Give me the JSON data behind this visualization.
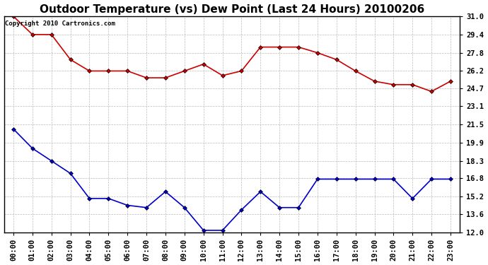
{
  "title": "Outdoor Temperature (vs) Dew Point (Last 24 Hours) 20100206",
  "copyright_text": "Copyright 2010 Cartronics.com",
  "x_labels": [
    "00:00",
    "01:00",
    "02:00",
    "03:00",
    "04:00",
    "05:00",
    "06:00",
    "07:00",
    "08:00",
    "09:00",
    "10:00",
    "11:00",
    "12:00",
    "13:00",
    "14:00",
    "15:00",
    "16:00",
    "17:00",
    "18:00",
    "19:00",
    "20:00",
    "21:00",
    "22:00",
    "23:00"
  ],
  "temp_data": [
    31.0,
    29.4,
    29.4,
    27.2,
    26.2,
    26.2,
    26.2,
    25.6,
    25.6,
    26.2,
    26.8,
    25.8,
    26.2,
    28.3,
    28.3,
    28.3,
    27.8,
    27.2,
    26.2,
    25.3,
    25.0,
    25.0,
    24.4,
    25.3
  ],
  "dew_data": [
    21.1,
    19.4,
    18.3,
    17.2,
    15.0,
    15.0,
    14.4,
    14.2,
    15.6,
    14.2,
    12.2,
    12.2,
    14.0,
    15.6,
    14.2,
    14.2,
    16.7,
    16.7,
    16.7,
    16.7,
    16.7,
    15.0,
    16.7,
    16.7
  ],
  "temp_color": "#cc0000",
  "dew_color": "#0000cc",
  "marker": "D",
  "marker_size": 3,
  "ylim": [
    12.0,
    31.0
  ],
  "yticks": [
    12.0,
    13.6,
    15.2,
    16.8,
    18.3,
    19.9,
    21.5,
    23.1,
    24.7,
    26.2,
    27.8,
    29.4,
    31.0
  ],
  "grid_color": "#bbbbbb",
  "bg_color": "#ffffff",
  "title_fontsize": 11,
  "copyright_fontsize": 6.5,
  "tick_fontsize": 7.5,
  "linewidth": 1.2
}
